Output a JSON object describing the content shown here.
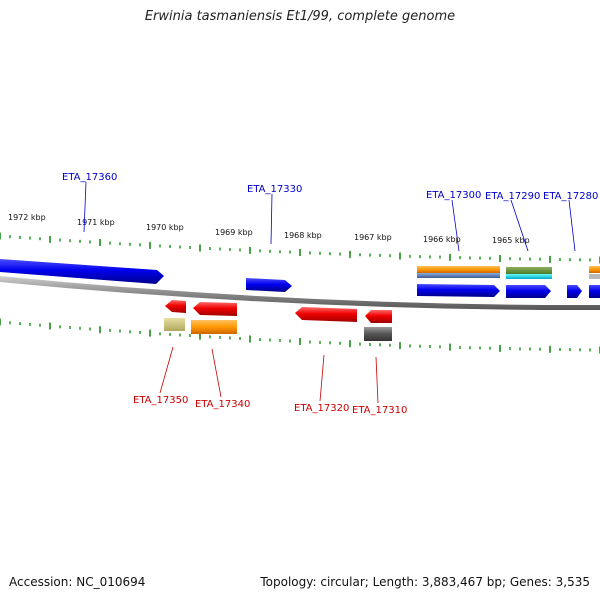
{
  "title": "Erwinia tasmaniensis Et1/99, complete genome",
  "footer": {
    "accession": "Accession: NC_010694",
    "summary": "Topology: circular; Length: 3,883,467 bp; Genes: 3,535"
  },
  "colors": {
    "forward_label": "#0000cc",
    "reverse_label": "#cc0000",
    "forward_gene": "#0000ee",
    "reverse_gene": "#ee0000",
    "backbone": "#888888",
    "tick": "#1a8a1a"
  },
  "scale": {
    "ticks": [
      {
        "label": "1972 kbp"
      },
      {
        "label": "1971 kbp"
      },
      {
        "label": "1970 kbp"
      },
      {
        "label": "1969 kbp"
      },
      {
        "label": "1968 kbp"
      },
      {
        "label": "1967 kbp"
      },
      {
        "label": "1966 kbp"
      },
      {
        "label": "1965 kbp"
      }
    ]
  },
  "genes": {
    "forward": [
      {
        "label": "ETA_17360"
      },
      {
        "label": "ETA_17330"
      },
      {
        "label": "ETA_17300"
      },
      {
        "label": "ETA_17290"
      },
      {
        "label": "ETA_17280"
      }
    ],
    "reverse": [
      {
        "label": "ETA_17350"
      },
      {
        "label": "ETA_17340"
      },
      {
        "label": "ETA_17320"
      },
      {
        "label": "ETA_17310"
      }
    ]
  }
}
